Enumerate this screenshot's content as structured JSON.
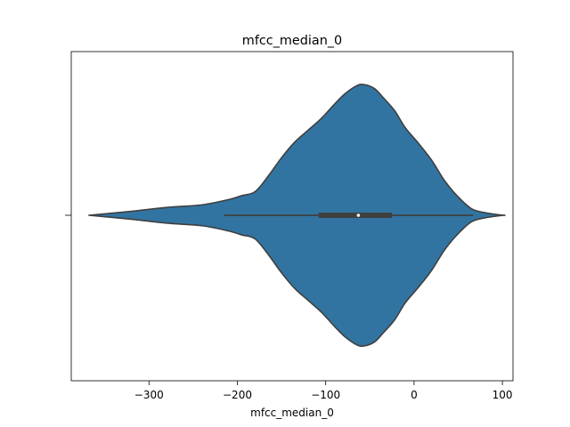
{
  "chart_data": {
    "type": "violin",
    "title": "mfcc_median_0",
    "xlabel": "mfcc_median_0",
    "ylabel": "",
    "xlim": [
      -388,
      112
    ],
    "xticks": [
      -300,
      -200,
      -100,
      0,
      100
    ],
    "xtick_labels": [
      "−300",
      "−200",
      "−100",
      "0",
      "100"
    ],
    "grid": false,
    "fill_color": "#3274a1",
    "edge_color": "#3f3f3f",
    "summary": {
      "min": -215,
      "q1": -108,
      "median": -63,
      "q3": -25,
      "max": 67
    },
    "density_outline": {
      "x": [
        -368,
        -320,
        -280,
        -240,
        -210,
        -195,
        -180,
        -165,
        -150,
        -135,
        -120,
        -105,
        -90,
        -78,
        -65,
        -57,
        -45,
        -35,
        -22,
        -10,
        5,
        20,
        35,
        50,
        65,
        80,
        95,
        102
      ],
      "half_width": [
        0.0,
        0.03,
        0.06,
        0.08,
        0.12,
        0.15,
        0.18,
        0.3,
        0.44,
        0.56,
        0.65,
        0.74,
        0.85,
        0.93,
        0.99,
        1.0,
        0.97,
        0.9,
        0.8,
        0.67,
        0.55,
        0.42,
        0.26,
        0.14,
        0.05,
        0.02,
        0.005,
        0.0
      ]
    }
  }
}
